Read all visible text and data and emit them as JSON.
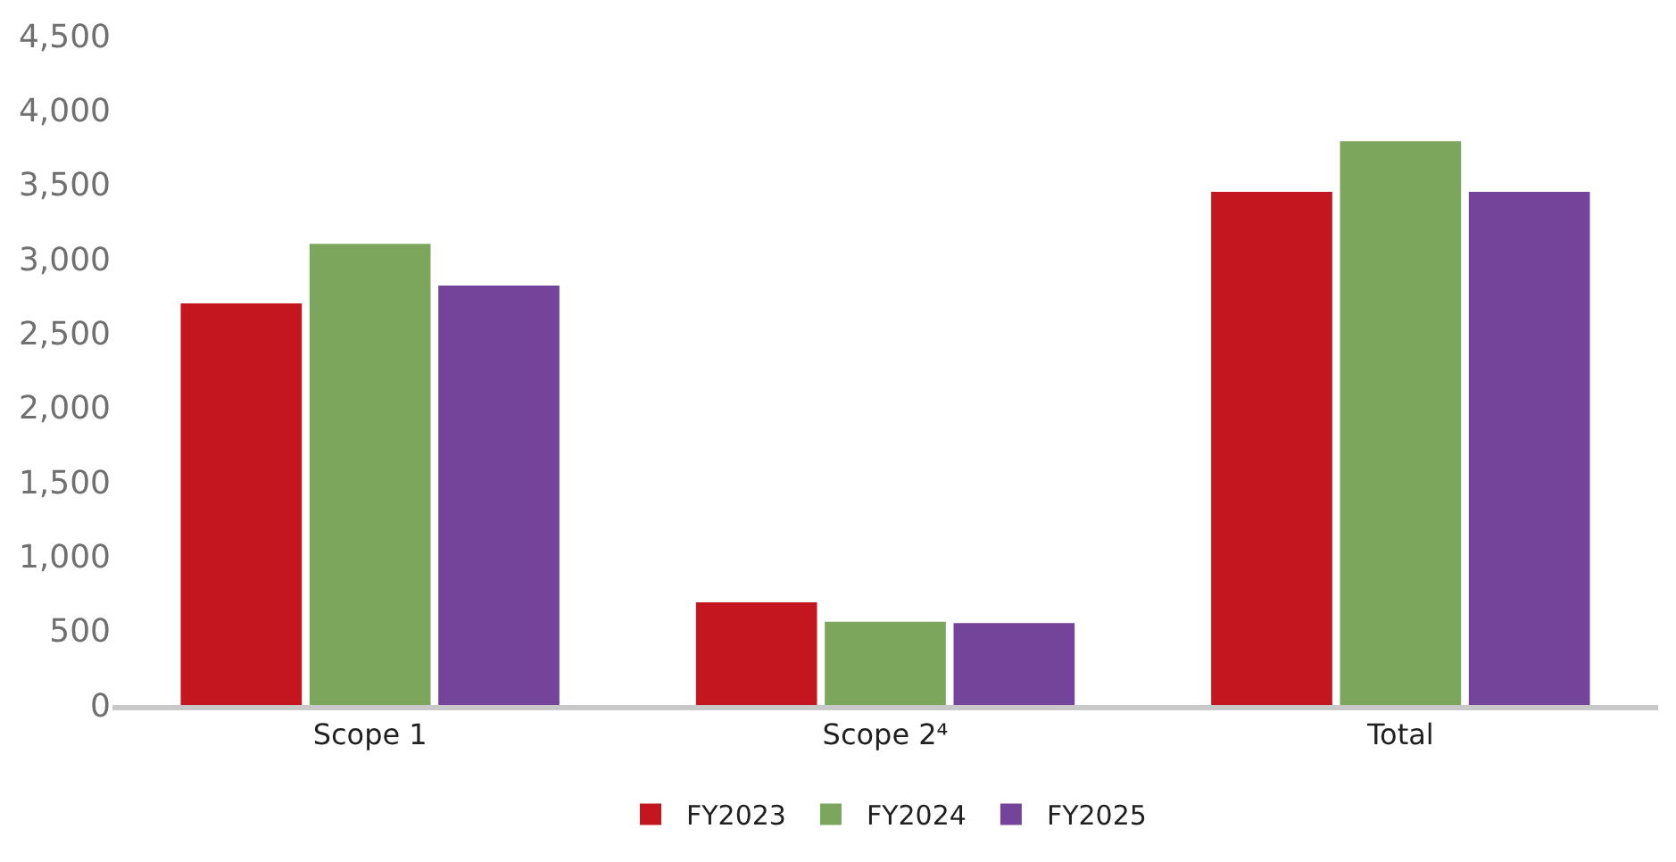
{
  "chart_data": {
    "type": "bar",
    "categories": [
      "Scope 1",
      "Scope 2⁴",
      "Total"
    ],
    "series": [
      {
        "name": "FY2023",
        "color": "#c4161f",
        "values": [
          2700,
          690,
          3450
        ]
      },
      {
        "name": "FY2024",
        "color": "#7ba65c",
        "values": [
          3100,
          560,
          3790
        ]
      },
      {
        "name": "FY2025",
        "color": "#74449a",
        "values": [
          2820,
          550,
          3450
        ]
      }
    ],
    "ylim": [
      0,
      4500
    ],
    "yticks": [
      {
        "value": 0,
        "label": "0"
      },
      {
        "value": 500,
        "label": "500"
      },
      {
        "value": 1000,
        "label": "1,000"
      },
      {
        "value": 1500,
        "label": "1,500"
      },
      {
        "value": 2000,
        "label": "2,000"
      },
      {
        "value": 2500,
        "label": "2,500"
      },
      {
        "value": 3000,
        "label": "3,000"
      },
      {
        "value": 3500,
        "label": "3,500"
      },
      {
        "value": 4000,
        "label": "4,000"
      },
      {
        "value": 4500,
        "label": "4,500"
      }
    ],
    "legend": "bottom"
  }
}
